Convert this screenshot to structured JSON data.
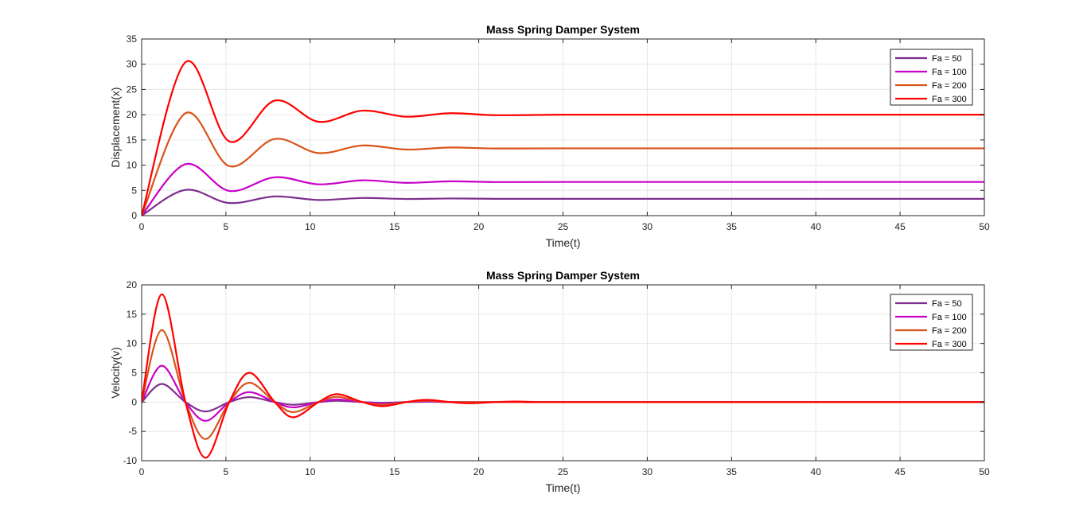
{
  "chart_data": [
    {
      "type": "line",
      "title": "Mass Spring Damper System",
      "xlabel": "Time(t)",
      "ylabel": "Displacement(x)",
      "xlim": [
        0,
        50
      ],
      "ylim": [
        0,
        35
      ],
      "xticks": [
        0,
        5,
        10,
        15,
        20,
        25,
        30,
        35,
        40,
        45,
        50
      ],
      "yticks": [
        0,
        5,
        10,
        15,
        20,
        25,
        30,
        35
      ],
      "grid": true,
      "legend_position": "top-right",
      "series": [
        {
          "name": "Fa = 50",
          "color": "#7E2F8E",
          "x": [
            0,
            2.6,
            5.2,
            7.9,
            10.5,
            13.1,
            15.7,
            18.3,
            21,
            25,
            30,
            50
          ],
          "y": [
            0,
            5.1,
            2.5,
            3.8,
            3.1,
            3.5,
            3.3,
            3.4,
            3.33,
            3.33,
            3.33,
            3.33
          ]
        },
        {
          "name": "Fa = 100",
          "color": "#C800C8",
          "x": [
            0,
            2.6,
            5.2,
            7.9,
            10.5,
            13.1,
            15.7,
            18.3,
            21,
            25,
            30,
            50
          ],
          "y": [
            0,
            10.2,
            4.9,
            7.6,
            6.2,
            7.0,
            6.5,
            6.8,
            6.65,
            6.67,
            6.67,
            6.67
          ]
        },
        {
          "name": "Fa = 200",
          "color": "#D95319",
          "x": [
            0,
            2.6,
            5.2,
            7.9,
            10.5,
            13.1,
            15.7,
            18.3,
            21,
            25,
            30,
            50
          ],
          "y": [
            0,
            20.3,
            9.8,
            15.2,
            12.4,
            13.9,
            13.1,
            13.5,
            13.3,
            13.33,
            13.33,
            13.33
          ]
        },
        {
          "name": "Fa = 300",
          "color": "#FF0000",
          "x": [
            0,
            2.6,
            5.2,
            7.9,
            10.5,
            13.1,
            15.7,
            18.3,
            21,
            25,
            30,
            50
          ],
          "y": [
            0,
            30.4,
            14.7,
            22.8,
            18.6,
            20.8,
            19.6,
            20.3,
            19.9,
            20,
            20,
            20
          ]
        }
      ]
    },
    {
      "type": "line",
      "title": "Mass Spring Damper System",
      "xlabel": "Time(t)",
      "ylabel": "Velocity(v)",
      "xlim": [
        0,
        50
      ],
      "ylim": [
        -10,
        20
      ],
      "xticks": [
        0,
        5,
        10,
        15,
        20,
        25,
        30,
        35,
        40,
        45,
        50
      ],
      "yticks": [
        -10,
        -5,
        0,
        5,
        10,
        15,
        20
      ],
      "grid": true,
      "legend_position": "top-right",
      "series": [
        {
          "name": "Fa = 50",
          "color": "#7E2F8E",
          "x": [
            0,
            1.2,
            2.6,
            3.8,
            5.2,
            6.4,
            7.9,
            9.0,
            10.5,
            11.6,
            13.1,
            14.3,
            15.7,
            16.9,
            18.3,
            20,
            22,
            25,
            50
          ],
          "y": [
            0,
            3.1,
            0,
            -1.6,
            0,
            0.85,
            0,
            -0.45,
            0,
            0.22,
            0,
            -0.12,
            0,
            0.06,
            0,
            0,
            0,
            0,
            0
          ]
        },
        {
          "name": "Fa = 100",
          "color": "#C800C8",
          "x": [
            0,
            1.2,
            2.6,
            3.8,
            5.2,
            6.4,
            7.9,
            9.0,
            10.5,
            11.6,
            13.1,
            14.3,
            15.7,
            16.9,
            18.3,
            20,
            22,
            25,
            50
          ],
          "y": [
            0,
            6.2,
            0,
            -3.2,
            0,
            1.7,
            0,
            -0.9,
            0,
            0.45,
            0,
            -0.25,
            0,
            0.12,
            0,
            0,
            0,
            0,
            0
          ]
        },
        {
          "name": "Fa = 200",
          "color": "#D95319",
          "x": [
            0,
            1.2,
            2.6,
            3.8,
            5.2,
            6.4,
            7.9,
            9.0,
            10.5,
            11.6,
            13.1,
            14.3,
            15.7,
            16.9,
            18.3,
            20,
            22,
            25,
            50
          ],
          "y": [
            0,
            12.3,
            0,
            -6.3,
            0,
            3.3,
            0,
            -1.7,
            0,
            0.9,
            0,
            -0.45,
            0,
            0.25,
            0,
            0,
            0,
            0,
            0
          ]
        },
        {
          "name": "Fa = 300",
          "color": "#FF0000",
          "x": [
            0,
            1.2,
            2.6,
            3.8,
            5.2,
            6.4,
            7.9,
            9.0,
            10.5,
            11.6,
            13.1,
            14.3,
            15.7,
            16.9,
            18.3,
            19.5,
            21,
            22.2,
            23.6,
            25,
            50
          ],
          "y": [
            0,
            18.4,
            0,
            -9.5,
            0,
            5.0,
            0,
            -2.6,
            0,
            1.35,
            0,
            -0.7,
            0,
            0.38,
            0,
            -0.2,
            0,
            0.1,
            0,
            0,
            0
          ]
        }
      ]
    }
  ]
}
